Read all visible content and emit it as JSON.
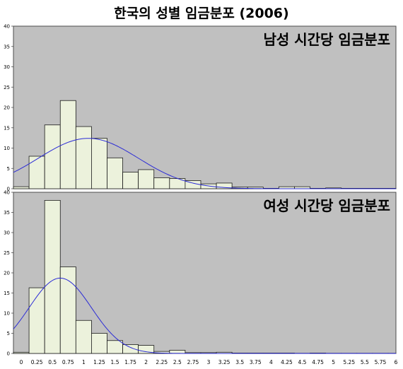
{
  "title": "한국의 성별 임금분포 (2006)",
  "chart_data": [
    {
      "type": "bar",
      "panel_label": "남성 시간당 임금분포",
      "bin_width": 0.25,
      "bin_starts": [
        0,
        0.25,
        0.5,
        0.75,
        1,
        1.25,
        1.5,
        1.75,
        2,
        2.25,
        2.5,
        2.75,
        3,
        3.25,
        3.5,
        3.75,
        4,
        4.25,
        4.5,
        4.75,
        5,
        5.25,
        5.5,
        5.75,
        6
      ],
      "values": [
        0.5,
        8,
        15.7,
        21.7,
        15.3,
        12.4,
        7.6,
        4.1,
        4.7,
        2.7,
        2.5,
        2,
        1.2,
        1.4,
        0.4,
        0.4,
        0.1,
        0.5,
        0.5,
        0.1,
        0.2,
        0.1,
        0.1,
        0.1,
        0.1
      ],
      "ylim": [
        0,
        40
      ],
      "yticks": [
        "0",
        "5",
        "10",
        "15",
        "20",
        "25",
        "30",
        "35",
        "40"
      ],
      "curve": {
        "type": "normal",
        "mean": 1.2,
        "sd": 0.8,
        "peak": 12.4
      }
    },
    {
      "type": "bar",
      "panel_label": "여성 시간당 임금분포",
      "bin_width": 0.25,
      "bin_starts": [
        0,
        0.25,
        0.5,
        0.75,
        1,
        1.25,
        1.5,
        1.75,
        2,
        2.25,
        2.5,
        2.75,
        3,
        3.25,
        3.5,
        3.75,
        4,
        4.25,
        4.5,
        4.75,
        5,
        5.25,
        5.5,
        5.75,
        6
      ],
      "values": [
        0.3,
        16.3,
        38,
        21.5,
        8.2,
        5,
        3.2,
        2.2,
        2,
        0.5,
        0.8,
        0.2,
        0.2,
        0.3,
        0.1,
        0.1,
        0.1,
        0.1,
        0.05,
        0.1,
        0.05,
        0.05,
        0.05,
        0.05,
        0.05
      ],
      "ylim": [
        0,
        40
      ],
      "yticks": [
        "0",
        "5",
        "10",
        "15",
        "20",
        "25",
        "30",
        "35",
        "40"
      ],
      "curve": {
        "type": "normal",
        "mean": 0.75,
        "sd": 0.5,
        "peak": 18.7
      }
    }
  ],
  "xticks": [
    "0",
    "0.25",
    "0.5",
    "0.75",
    "1",
    "1.25",
    "1.5",
    "1.75",
    "2",
    "2.25",
    "2.5",
    "2.75",
    "3",
    "3.25",
    "3.5",
    "3.75",
    "4",
    "4.25",
    "4.5",
    "4.75",
    "5",
    "5.25",
    "5.5",
    "5.75",
    "6"
  ],
  "colors": {
    "plot_background": "#c0c0c0",
    "bar_fill": "#ecf2dc",
    "bar_stroke": "#1a1a1a",
    "curve": "#2b2bd6"
  }
}
